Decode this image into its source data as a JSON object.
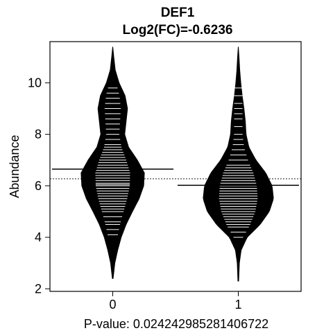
{
  "chart_data": {
    "type": "beanplot",
    "title": "DEF1",
    "subtitle": "Log2(FC)=-0.6236",
    "ylabel": "Abundance",
    "xlabel": "P-value: 0.024242985281406722",
    "categories": [
      "0",
      "1"
    ],
    "ylim": [
      1.9,
      11.6
    ],
    "yticks": [
      2,
      4,
      6,
      8,
      10
    ],
    "overall_mean": 6.27,
    "groups": [
      {
        "name": "0",
        "mean": 6.65,
        "range": [
          2.4,
          11.4
        ],
        "density": [
          [
            2.4,
            0.01
          ],
          [
            3.0,
            0.06
          ],
          [
            3.5,
            0.14
          ],
          [
            4.0,
            0.24
          ],
          [
            4.5,
            0.38
          ],
          [
            5.0,
            0.56
          ],
          [
            5.5,
            0.75
          ],
          [
            6.0,
            0.88
          ],
          [
            6.5,
            0.9
          ],
          [
            7.0,
            0.7
          ],
          [
            7.5,
            0.45
          ],
          [
            8.0,
            0.34
          ],
          [
            8.5,
            0.38
          ],
          [
            9.0,
            0.42
          ],
          [
            9.5,
            0.35
          ],
          [
            10.0,
            0.18
          ],
          [
            10.5,
            0.07
          ],
          [
            11.0,
            0.03
          ],
          [
            11.4,
            0.0
          ]
        ],
        "points": [
          4.1,
          4.3,
          4.5,
          4.6,
          4.8,
          5.0,
          5.1,
          5.2,
          5.3,
          5.4,
          5.5,
          5.6,
          5.7,
          5.8,
          5.9,
          6.0,
          6.05,
          6.1,
          6.2,
          6.3,
          6.4,
          6.5,
          6.6,
          6.7,
          6.8,
          6.9,
          7.0,
          7.1,
          7.2,
          7.3,
          7.4,
          7.5,
          7.6,
          7.8,
          8.0,
          8.2,
          8.4,
          8.6,
          8.8,
          9.0,
          9.2,
          9.4,
          9.6,
          9.8
        ]
      },
      {
        "name": "1",
        "mean": 6.02,
        "range": [
          2.3,
          11.4
        ],
        "density": [
          [
            2.3,
            0.01
          ],
          [
            3.0,
            0.03
          ],
          [
            3.5,
            0.08
          ],
          [
            4.0,
            0.25
          ],
          [
            4.5,
            0.62
          ],
          [
            5.0,
            0.88
          ],
          [
            5.5,
            1.0
          ],
          [
            6.0,
            0.96
          ],
          [
            6.5,
            0.78
          ],
          [
            7.0,
            0.5
          ],
          [
            7.5,
            0.3
          ],
          [
            8.0,
            0.22
          ],
          [
            8.5,
            0.2
          ],
          [
            9.0,
            0.16
          ],
          [
            9.5,
            0.11
          ],
          [
            10.0,
            0.07
          ],
          [
            10.5,
            0.04
          ],
          [
            11.0,
            0.02
          ],
          [
            11.4,
            0.0
          ]
        ],
        "points": [
          4.0,
          4.2,
          4.4,
          4.5,
          4.6,
          4.7,
          4.8,
          4.9,
          5.0,
          5.1,
          5.2,
          5.3,
          5.4,
          5.5,
          5.6,
          5.7,
          5.8,
          5.9,
          6.0,
          6.1,
          6.2,
          6.3,
          6.4,
          6.5,
          6.6,
          6.7,
          6.8,
          7.0,
          7.2,
          7.4,
          7.6,
          7.8,
          8.0,
          8.3,
          8.6,
          8.8,
          9.0,
          9.2,
          9.5,
          9.8
        ]
      }
    ]
  }
}
